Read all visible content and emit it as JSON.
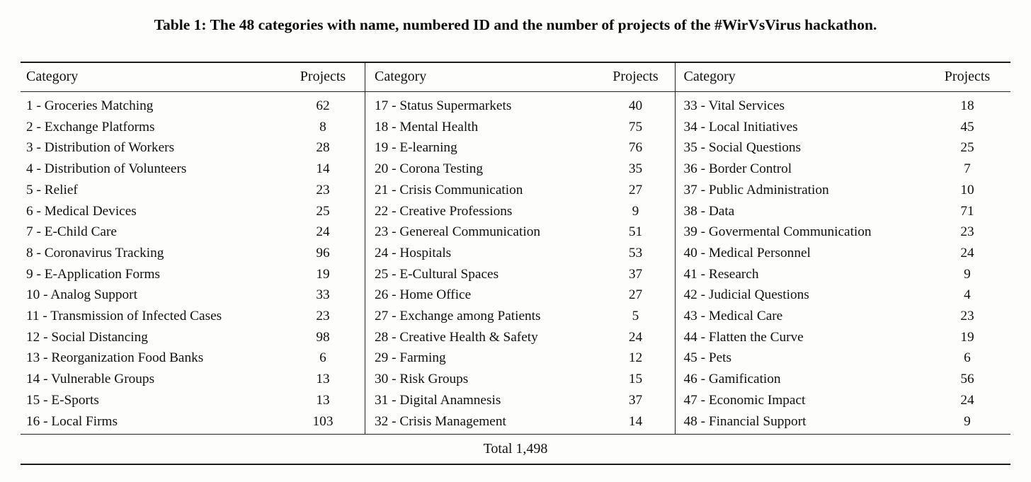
{
  "caption": "Table 1: The 48 categories with name, numbered ID and the number of projects of the #WirVsVirus hackathon.",
  "table": {
    "column_headers": {
      "category": "Category",
      "projects": "Projects"
    },
    "groups": [
      {
        "rows": [
          {
            "category": "1 - Groceries Matching",
            "projects": "62"
          },
          {
            "category": "2 - Exchange Platforms",
            "projects": "8"
          },
          {
            "category": "3 - Distribution of Workers",
            "projects": "28"
          },
          {
            "category": "4 - Distribution of Volunteers",
            "projects": "14"
          },
          {
            "category": "5 - Relief",
            "projects": "23"
          },
          {
            "category": "6 - Medical Devices",
            "projects": "25"
          },
          {
            "category": "7 - E-Child Care",
            "projects": "24"
          },
          {
            "category": "8 - Coronavirus Tracking",
            "projects": "96"
          },
          {
            "category": "9 - E-Application Forms",
            "projects": "19"
          },
          {
            "category": "10 - Analog Support",
            "projects": "33"
          },
          {
            "category": "11 - Transmission of Infected Cases",
            "projects": "23"
          },
          {
            "category": "12 - Social Distancing",
            "projects": "98"
          },
          {
            "category": "13 - Reorganization Food Banks",
            "projects": "6"
          },
          {
            "category": "14 - Vulnerable Groups",
            "projects": "13"
          },
          {
            "category": "15 - E-Sports",
            "projects": "13"
          },
          {
            "category": "16 - Local Firms",
            "projects": "103"
          }
        ]
      },
      {
        "rows": [
          {
            "category": "17 - Status Supermarkets",
            "projects": "40"
          },
          {
            "category": "18 - Mental Health",
            "projects": "75"
          },
          {
            "category": "19 - E-learning",
            "projects": "76"
          },
          {
            "category": "20 - Corona Testing",
            "projects": "35"
          },
          {
            "category": "21 - Crisis Communication",
            "projects": "27"
          },
          {
            "category": "22 - Creative Professions",
            "projects": "9"
          },
          {
            "category": "23 - Genereal Communication",
            "projects": "51"
          },
          {
            "category": "24 - Hospitals",
            "projects": "53"
          },
          {
            "category": "25 - E-Cultural Spaces",
            "projects": "37"
          },
          {
            "category": "26 - Home Office",
            "projects": "27"
          },
          {
            "category": "27 - Exchange among Patients",
            "projects": "5"
          },
          {
            "category": "28 - Creative Health & Safety",
            "projects": "24"
          },
          {
            "category": "29 - Farming",
            "projects": "12"
          },
          {
            "category": "30 - Risk Groups",
            "projects": "15"
          },
          {
            "category": "31 - Digital Anamnesis",
            "projects": "37"
          },
          {
            "category": "32 - Crisis Management",
            "projects": "14"
          }
        ]
      },
      {
        "rows": [
          {
            "category": "33 - Vital Services",
            "projects": "18"
          },
          {
            "category": "34 - Local Initiatives",
            "projects": "45"
          },
          {
            "category": "35 - Social Questions",
            "projects": "25"
          },
          {
            "category": "36 - Border Control",
            "projects": "7"
          },
          {
            "category": "37 - Public Administration",
            "projects": "10"
          },
          {
            "category": "38 - Data",
            "projects": "71"
          },
          {
            "category": "39 - Govermental Communication",
            "projects": "23"
          },
          {
            "category": "40 - Medical Personnel",
            "projects": "24"
          },
          {
            "category": "41 - Research",
            "projects": "9"
          },
          {
            "category": "42 - Judicial Questions",
            "projects": "4"
          },
          {
            "category": "43 - Medical Care",
            "projects": "23"
          },
          {
            "category": "44 - Flatten the Curve",
            "projects": "19"
          },
          {
            "category": "45 - Pets",
            "projects": "6"
          },
          {
            "category": "46 - Gamification",
            "projects": "56"
          },
          {
            "category": "47 - Economic Impact",
            "projects": "24"
          },
          {
            "category": "48 - Financial Support",
            "projects": "9"
          }
        ]
      }
    ],
    "total_label": "Total",
    "total_value": "1,498"
  },
  "colors": {
    "text": "#111111",
    "rule": "#1c1c1c",
    "background": "#fdfdfc"
  }
}
